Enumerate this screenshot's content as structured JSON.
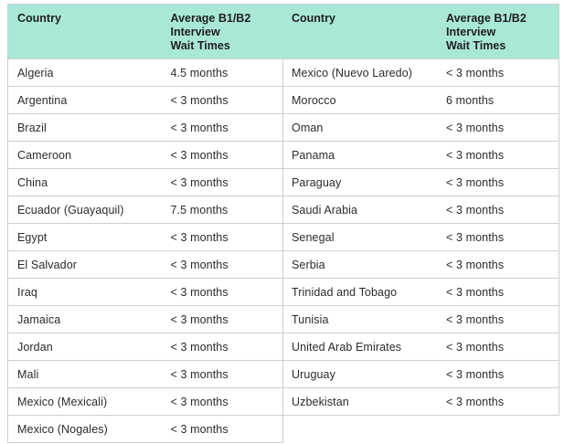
{
  "headers": {
    "country": "Country",
    "wait_line1": "Average B1/B2",
    "wait_line2": "Interview",
    "wait_line3": "Wait Times"
  },
  "left_rows": [
    {
      "country": "Algeria",
      "wait": "4.5 months"
    },
    {
      "country": "Argentina",
      "wait": "< 3 months"
    },
    {
      "country": "Brazil",
      "wait": "< 3 months"
    },
    {
      "country": "Cameroon",
      "wait": "< 3 months"
    },
    {
      "country": "China",
      "wait": "< 3 months"
    },
    {
      "country": "Ecuador (Guayaquil)",
      "wait": "7.5 months"
    },
    {
      "country": "Egypt",
      "wait": "< 3 months"
    },
    {
      "country": "El Salvador",
      "wait": "< 3 months"
    },
    {
      "country": "Iraq",
      "wait": "< 3 months"
    },
    {
      "country": "Jamaica",
      "wait": "< 3 months"
    },
    {
      "country": "Jordan",
      "wait": "< 3 months"
    },
    {
      "country": "Mali",
      "wait": "< 3 months"
    },
    {
      "country": "Mexico (Mexicali)",
      "wait": "< 3 months"
    },
    {
      "country": "Mexico (Nogales)",
      "wait": "< 3 months"
    }
  ],
  "right_rows": [
    {
      "country": "Mexico (Nuevo Laredo)",
      "wait": "< 3 months"
    },
    {
      "country": "Morocco",
      "wait": "6 months"
    },
    {
      "country": "Oman",
      "wait": "< 3 months"
    },
    {
      "country": "Panama",
      "wait": "< 3 months"
    },
    {
      "country": "Paraguay",
      "wait": "< 3 months"
    },
    {
      "country": "Saudi Arabia",
      "wait": "< 3 months"
    },
    {
      "country": "Senegal",
      "wait": "< 3 months"
    },
    {
      "country": "Serbia",
      "wait": "< 3 months"
    },
    {
      "country": "Trinidad and Tobago",
      "wait": "< 3 months"
    },
    {
      "country": "Tunisia",
      "wait": "< 3 months"
    },
    {
      "country": "United Arab Emirates",
      "wait": "< 3 months"
    },
    {
      "country": "Uruguay",
      "wait": "< 3 months"
    },
    {
      "country": "Uzbekistan",
      "wait": "< 3 months"
    }
  ],
  "colors": {
    "header_bg": "#a9e8d8",
    "border": "#cfcfcf",
    "text": "#2b2b2b"
  }
}
